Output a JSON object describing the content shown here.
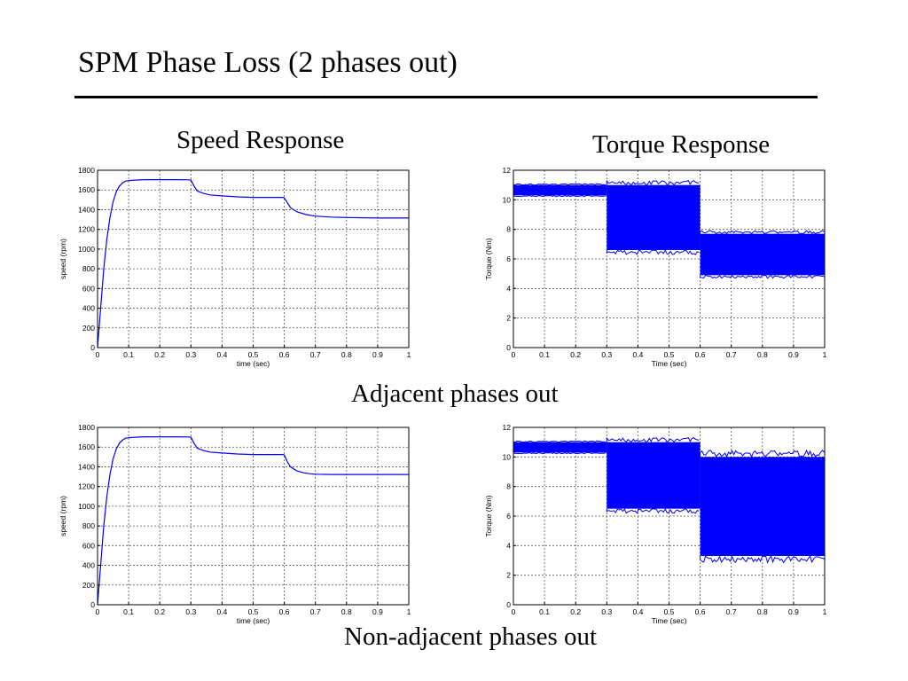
{
  "slide": {
    "title": "SPM Phase Loss (2 phases out)",
    "speed_heading": "Speed Response",
    "torque_heading": "Torque Response",
    "row1_caption": "Adjacent phases out",
    "row2_caption": "Non-adjacent phases out"
  },
  "colors": {
    "trace": "#0000ff",
    "grid": "#555555",
    "text": "#000000"
  },
  "chart_data": [
    {
      "type": "line",
      "id": "speed-adjacent",
      "xlabel": "time (sec)",
      "ylabel": "speed (rpm)",
      "xlim": [
        0,
        1
      ],
      "ylim": [
        0,
        1800
      ],
      "xticks": [
        "0",
        "0.1",
        "0.2",
        "0.3",
        "0.4",
        "0.5",
        "0.6",
        "0.7",
        "0.8",
        "0.9",
        "1"
      ],
      "yticks": [
        "0",
        "200",
        "400",
        "600",
        "800",
        "1000",
        "1200",
        "1400",
        "1600",
        "1800"
      ],
      "grid": true,
      "series": [
        {
          "x": [
            0,
            0.01,
            0.02,
            0.03,
            0.04,
            0.05,
            0.06,
            0.07,
            0.08,
            0.09,
            0.1,
            0.12,
            0.15,
            0.2,
            0.25,
            0.295,
            0.3,
            0.31,
            0.32,
            0.34,
            0.36,
            0.4,
            0.45,
            0.5,
            0.55,
            0.595,
            0.6,
            0.61,
            0.62,
            0.64,
            0.67,
            0.7,
            0.75,
            0.8,
            0.9,
            1.0
          ],
          "y": [
            0,
            400,
            800,
            1100,
            1320,
            1480,
            1580,
            1640,
            1670,
            1690,
            1695,
            1700,
            1705,
            1705,
            1705,
            1703,
            1700,
            1640,
            1590,
            1565,
            1550,
            1540,
            1530,
            1525,
            1525,
            1525,
            1520,
            1470,
            1420,
            1380,
            1350,
            1335,
            1325,
            1320,
            1315,
            1315
          ]
        }
      ]
    },
    {
      "type": "area",
      "id": "torque-adjacent",
      "xlabel": "Time (sec)",
      "ylabel": "Torque (Nm)",
      "xlim": [
        0,
        1
      ],
      "ylim": [
        0,
        12
      ],
      "xticks": [
        "0",
        "0.1",
        "0.2",
        "0.3",
        "0.4",
        "0.5",
        "0.6",
        "0.7",
        "0.8",
        "0.9",
        "1"
      ],
      "yticks": [
        "0",
        "2",
        "4",
        "6",
        "8",
        "10",
        "12"
      ],
      "grid": true,
      "bands": [
        {
          "x": [
            0,
            0.3
          ],
          "min": 10.3,
          "max": 11.0
        },
        {
          "x": [
            0.3,
            0.6
          ],
          "min": 6.6,
          "max": 11.0
        },
        {
          "x": [
            0.6,
            1.0
          ],
          "min": 4.9,
          "max": 7.7
        }
      ]
    },
    {
      "type": "line",
      "id": "speed-non-adjacent",
      "xlabel": "time (sec)",
      "ylabel": "speed (rpm)",
      "xlim": [
        0,
        1
      ],
      "ylim": [
        0,
        1800
      ],
      "xticks": [
        "0",
        "0.1",
        "0.2",
        "0.3",
        "0.4",
        "0.5",
        "0.6",
        "0.7",
        "0.8",
        "0.9",
        "1"
      ],
      "yticks": [
        "0",
        "200",
        "400",
        "600",
        "800",
        "1000",
        "1200",
        "1400",
        "1600",
        "1800"
      ],
      "grid": true,
      "series": [
        {
          "x": [
            0,
            0.01,
            0.02,
            0.03,
            0.04,
            0.05,
            0.06,
            0.07,
            0.08,
            0.09,
            0.1,
            0.12,
            0.15,
            0.2,
            0.25,
            0.295,
            0.3,
            0.31,
            0.32,
            0.34,
            0.36,
            0.4,
            0.45,
            0.5,
            0.55,
            0.595,
            0.6,
            0.61,
            0.62,
            0.64,
            0.66,
            0.68,
            0.7,
            0.75,
            0.8,
            0.9,
            1.0
          ],
          "y": [
            0,
            400,
            800,
            1100,
            1320,
            1480,
            1580,
            1640,
            1670,
            1690,
            1695,
            1700,
            1705,
            1705,
            1705,
            1703,
            1700,
            1640,
            1590,
            1565,
            1550,
            1540,
            1530,
            1525,
            1525,
            1525,
            1520,
            1450,
            1400,
            1360,
            1340,
            1330,
            1325,
            1322,
            1322,
            1322,
            1322
          ]
        }
      ]
    },
    {
      "type": "area",
      "id": "torque-non-adjacent",
      "xlabel": "Time (sec)",
      "ylabel": "Torque (Nm)",
      "xlim": [
        0,
        1
      ],
      "ylim": [
        0,
        12
      ],
      "xticks": [
        "0",
        "0.1",
        "0.2",
        "0.3",
        "0.4",
        "0.5",
        "0.6",
        "0.7",
        "0.8",
        "0.9",
        "1"
      ],
      "yticks": [
        "0",
        "2",
        "4",
        "6",
        "8",
        "10",
        "12"
      ],
      "grid": true,
      "bands": [
        {
          "x": [
            0,
            0.3
          ],
          "min": 10.3,
          "max": 11.0
        },
        {
          "x": [
            0.3,
            0.6
          ],
          "min": 6.5,
          "max": 11.0
        },
        {
          "x": [
            0.6,
            1.0
          ],
          "min": 3.3,
          "max": 10.0
        }
      ]
    }
  ]
}
